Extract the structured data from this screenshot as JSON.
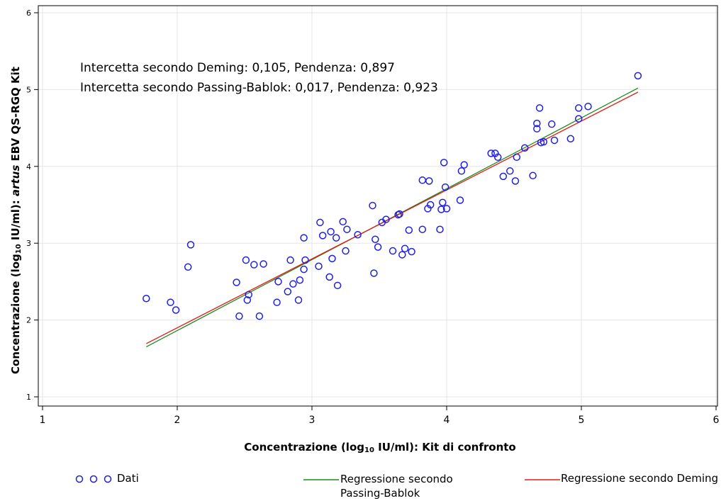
{
  "chart_data": {
    "type": "scatter",
    "xlabel": {
      "prefix": "Concentrazione (log",
      "sub": "10",
      "suffix": " IU/ml): Kit di confronto"
    },
    "ylabel": {
      "prefix": "Concentrazione (log",
      "sub": "10",
      "suffix": " IU/ml): ",
      "italic": "artus",
      "suffix2": " EBV QS-RGQ Kit"
    },
    "xlim": [
      1,
      6
    ],
    "ylim": [
      1,
      6
    ],
    "xticks": [
      1,
      2,
      3,
      4,
      5,
      6
    ],
    "yticks": [
      1,
      2,
      3,
      4,
      5,
      6
    ],
    "grid": true,
    "annotations": [
      "Intercetta secondo Deming: 0,105, Pendenza: 0,897",
      "Intercetta secondo Passing-Bablok: 0,017, Pendenza: 0,923"
    ],
    "legend": {
      "placement": "bottom",
      "dati": "Dati",
      "pb_line1": "Regressione secondo",
      "pb_line2": "Passing-Bablok",
      "deming": "Regressione secondo Deming"
    },
    "colors": {
      "points": "#1f1fe6",
      "passing_bablok": "#1a8a1a",
      "deming": "#e31a1a",
      "grid": "#e6e6e6"
    },
    "regression_pb": {
      "intercept": 0.017,
      "slope": 0.923,
      "x_range": [
        1.77,
        5.42
      ]
    },
    "regression_deming": {
      "intercept": 0.105,
      "slope": 0.897,
      "x_range": [
        1.77,
        5.42
      ]
    },
    "points": [
      [
        1.77,
        2.28
      ],
      [
        1.95,
        2.23
      ],
      [
        1.99,
        2.13
      ],
      [
        2.08,
        2.69
      ],
      [
        2.1,
        2.98
      ],
      [
        2.44,
        2.49
      ],
      [
        2.46,
        2.05
      ],
      [
        2.51,
        2.78
      ],
      [
        2.52,
        2.26
      ],
      [
        2.53,
        2.33
      ],
      [
        2.57,
        2.72
      ],
      [
        2.61,
        2.05
      ],
      [
        2.64,
        2.73
      ],
      [
        2.74,
        2.23
      ],
      [
        2.75,
        2.5
      ],
      [
        2.82,
        2.37
      ],
      [
        2.84,
        2.78
      ],
      [
        2.86,
        2.47
      ],
      [
        2.9,
        2.26
      ],
      [
        2.91,
        2.52
      ],
      [
        2.94,
        2.66
      ],
      [
        2.94,
        3.07
      ],
      [
        2.95,
        2.78
      ],
      [
        3.05,
        2.7
      ],
      [
        3.06,
        3.27
      ],
      [
        3.08,
        3.1
      ],
      [
        3.13,
        2.56
      ],
      [
        3.14,
        3.15
      ],
      [
        3.15,
        2.8
      ],
      [
        3.18,
        3.07
      ],
      [
        3.19,
        2.45
      ],
      [
        3.23,
        3.28
      ],
      [
        3.25,
        2.9
      ],
      [
        3.26,
        3.18
      ],
      [
        3.34,
        3.11
      ],
      [
        3.45,
        3.49
      ],
      [
        3.46,
        2.61
      ],
      [
        3.47,
        3.05
      ],
      [
        3.49,
        2.95
      ],
      [
        3.52,
        3.27
      ],
      [
        3.55,
        3.31
      ],
      [
        3.6,
        2.9
      ],
      [
        3.64,
        3.37
      ],
      [
        3.65,
        3.38
      ],
      [
        3.67,
        2.85
      ],
      [
        3.69,
        2.93
      ],
      [
        3.72,
        3.17
      ],
      [
        3.74,
        2.89
      ],
      [
        3.82,
        3.18
      ],
      [
        3.82,
        3.82
      ],
      [
        3.86,
        3.45
      ],
      [
        3.87,
        3.81
      ],
      [
        3.88,
        3.5
      ],
      [
        3.95,
        3.18
      ],
      [
        3.96,
        3.44
      ],
      [
        3.97,
        3.53
      ],
      [
        3.98,
        4.05
      ],
      [
        3.99,
        3.73
      ],
      [
        4.0,
        3.45
      ],
      [
        4.1,
        3.56
      ],
      [
        4.11,
        3.94
      ],
      [
        4.13,
        4.02
      ],
      [
        4.33,
        4.17
      ],
      [
        4.36,
        4.17
      ],
      [
        4.38,
        4.12
      ],
      [
        4.42,
        3.87
      ],
      [
        4.47,
        3.94
      ],
      [
        4.51,
        3.81
      ],
      [
        4.52,
        4.12
      ],
      [
        4.58,
        4.24
      ],
      [
        4.64,
        3.88
      ],
      [
        4.67,
        4.49
      ],
      [
        4.67,
        4.56
      ],
      [
        4.69,
        4.76
      ],
      [
        4.7,
        4.31
      ],
      [
        4.72,
        4.32
      ],
      [
        4.78,
        4.55
      ],
      [
        4.8,
        4.34
      ],
      [
        4.92,
        4.36
      ],
      [
        4.98,
        4.62
      ],
      [
        4.98,
        4.76
      ],
      [
        5.05,
        4.78
      ],
      [
        5.42,
        5.18
      ]
    ]
  }
}
